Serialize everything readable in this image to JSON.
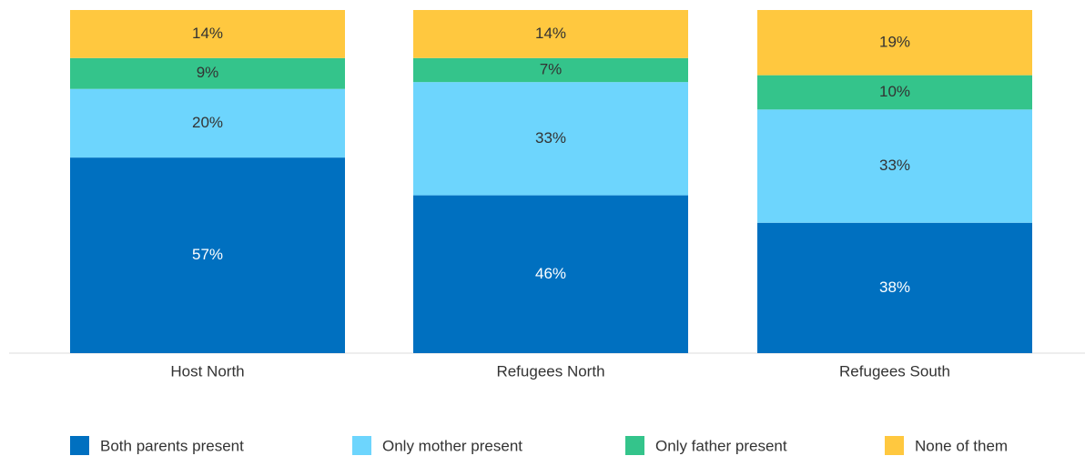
{
  "chart_data": {
    "type": "stacked_bar",
    "categories": [
      "Host North",
      "Refugees North",
      "Refugees South"
    ],
    "series": [
      {
        "name": "Both parents present",
        "color": "#0070c0",
        "values": [
          57,
          46,
          38
        ],
        "value_labels": [
          "57%",
          "46%",
          "38%"
        ]
      },
      {
        "name": "Only mother present",
        "color": "#6dd5fd",
        "values": [
          20,
          33,
          33
        ],
        "value_labels": [
          "20%",
          "33%",
          "33%"
        ]
      },
      {
        "name": "Only father present",
        "color": "#34c48b",
        "values": [
          9,
          7,
          10
        ],
        "value_labels": [
          "9%",
          "7%",
          "10%"
        ]
      },
      {
        "name": "None of them",
        "color": "#ffc83f",
        "values": [
          14,
          14,
          19
        ],
        "value_labels": [
          "14%",
          "14%",
          "19%"
        ]
      }
    ],
    "ylim": [
      0,
      100
    ],
    "legend": "bottom"
  }
}
